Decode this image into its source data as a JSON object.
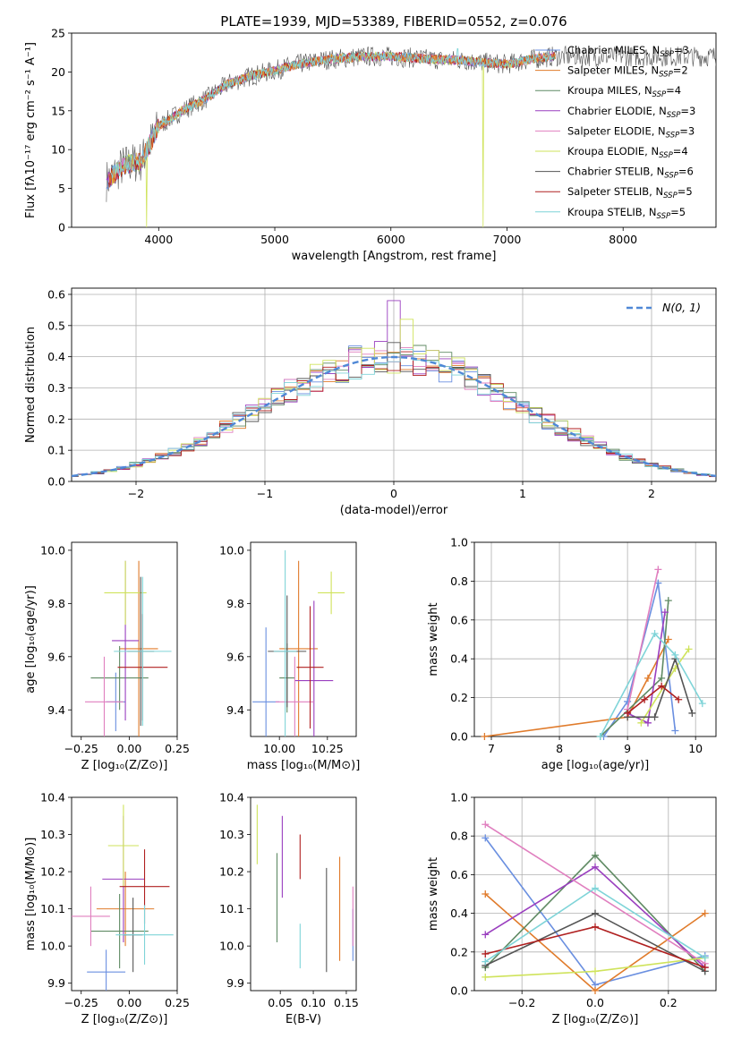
{
  "figure": {
    "title": "PLATE=1939, MJD=53389, FIBERID=0552, z=0.076"
  },
  "colors": {
    "series": [
      "#6a8fe0",
      "#e07b2b",
      "#5f8a63",
      "#9a3fbf",
      "#e07fbf",
      "#cfe35b",
      "#555555",
      "#b02020",
      "#7fd4d8"
    ]
  },
  "chart_data": [
    {
      "id": "spectrum",
      "type": "line",
      "title": "PLATE=1939, MJD=53389, FIBERID=0552, z=0.076",
      "xlabel": "wavelength [Angstrom, rest frame]",
      "ylabel": "Flux [fλ10⁻¹⁷ erg cm⁻² s⁻¹ A⁻¹]",
      "xlim": [
        3250,
        8800
      ],
      "ylim": [
        0,
        25
      ],
      "xticks": [
        4000,
        5000,
        6000,
        7000,
        8000
      ],
      "yticks": [
        0,
        5,
        10,
        15,
        20,
        25
      ],
      "grid": false,
      "legend": "top-right",
      "series": [
        {
          "name": "Chabrier MILES, N",
          "sub": "SSP",
          "suffix": "=3"
        },
        {
          "name": "Salpeter MILES, N",
          "sub": "SSP",
          "suffix": "=2"
        },
        {
          "name": "Kroupa MILES, N",
          "sub": "SSP",
          "suffix": "=4"
        },
        {
          "name": "Chabrier ELODIE, N",
          "sub": "SSP",
          "suffix": "=3"
        },
        {
          "name": "Salpeter ELODIE, N",
          "sub": "SSP",
          "suffix": "=3"
        },
        {
          "name": "Kroupa ELODIE, N",
          "sub": "SSP",
          "suffix": "=4"
        },
        {
          "name": "Chabrier STELIB, N",
          "sub": "SSP",
          "suffix": "=6"
        },
        {
          "name": "Salpeter STELIB, N",
          "sub": "SSP",
          "suffix": "=5"
        },
        {
          "name": "Kroupa STELIB, N",
          "sub": "SSP",
          "suffix": "=5"
        }
      ],
      "continuum": {
        "x": [
          3550,
          3700,
          3850,
          4000,
          4200,
          4400,
          4600,
          4800,
          5000,
          5200,
          5400,
          5600,
          5800,
          6000,
          6200,
          6400,
          6600,
          6800,
          7000,
          7200,
          7400
        ],
        "y": [
          6.0,
          8.0,
          8.5,
          13.0,
          15.0,
          16.5,
          18.5,
          19.5,
          20.2,
          21.0,
          21.5,
          21.8,
          22.0,
          22.0,
          21.8,
          21.6,
          21.5,
          21.2,
          21.0,
          21.6,
          22.0
        ]
      }
    },
    {
      "id": "residuals",
      "type": "histogram",
      "xlabel": "(data-model)/error",
      "ylabel": "Normed distribution",
      "xlim": [
        -2.5,
        2.5
      ],
      "ylim": [
        0,
        0.62
      ],
      "xticks": [
        -2,
        -1,
        0,
        1,
        2
      ],
      "xticklabels": [
        "−2",
        "−1",
        "0",
        "1",
        "2"
      ],
      "yticks": [
        0,
        0.1,
        0.2,
        0.3,
        0.4,
        0.5,
        0.6
      ],
      "yticklabels": [
        "0.0",
        "0.1",
        "0.2",
        "0.3",
        "0.4",
        "0.5",
        "0.6"
      ],
      "grid": true,
      "legend": "top-right",
      "reference": {
        "name": "N(0, 1)",
        "style": "dashed"
      }
    },
    {
      "id": "age-vs-Z",
      "type": "scatter",
      "xlabel": "Z [log₁₀(Z/Z⊙)]",
      "ylabel": "age  [log₁₀(age/yr)]",
      "xlim": [
        -0.3,
        0.25
      ],
      "ylim": [
        9.3,
        10.03
      ],
      "xticks": [
        -0.25,
        0.0,
        0.25
      ],
      "xticklabels": [
        "−0.25",
        "0.00",
        "0.25"
      ],
      "yticks": [
        9.4,
        9.6,
        9.8,
        10.0
      ],
      "yticklabels": [
        "9.4",
        "9.6",
        "9.8",
        "10.0"
      ],
      "points": [
        {
          "x": -0.07,
          "y": 9.43,
          "xerr": 0.05,
          "yerr": 0.11
        },
        {
          "x": 0.05,
          "y": 9.63,
          "xerr": 0.1,
          "yerr": 0.33
        },
        {
          "x": -0.05,
          "y": 9.52,
          "xerr": 0.15,
          "yerr": 0.12
        },
        {
          "x": -0.02,
          "y": 9.66,
          "xerr": 0.07,
          "yerr": 0.3
        },
        {
          "x": -0.13,
          "y": 9.43,
          "xerr": 0.1,
          "yerr": 0.17
        },
        {
          "x": -0.02,
          "y": 9.84,
          "xerr": 0.11,
          "yerr": 0.12
        },
        {
          "x": 0.06,
          "y": 9.62,
          "xerr": 0.07,
          "yerr": 0.28
        },
        {
          "x": 0.07,
          "y": 9.56,
          "xerr": 0.13,
          "yerr": 0.2
        },
        {
          "x": 0.07,
          "y": 9.62,
          "xerr": 0.15,
          "yerr": 0.28
        }
      ]
    },
    {
      "id": "age-vs-mass",
      "type": "scatter",
      "xlabel": "mass [log₁₀(M/M⊙)]",
      "ylabel": "",
      "xlim": [
        9.85,
        10.4
      ],
      "ylim": [
        9.3,
        10.03
      ],
      "xticks": [
        10.0,
        10.25
      ],
      "xticklabels": [
        "10.00",
        "10.25"
      ],
      "yticks": [
        9.4,
        9.6,
        9.8,
        10.0
      ],
      "yticklabels": [
        "9.4",
        "9.6",
        "9.8",
        "10.0"
      ],
      "points": [
        {
          "x": 9.93,
          "y": 9.43,
          "xerr": 0.07,
          "yerr": 0.28
        },
        {
          "x": 10.1,
          "y": 9.63,
          "xerr": 0.1,
          "yerr": 0.33
        },
        {
          "x": 10.04,
          "y": 9.52,
          "xerr": 0.04,
          "yerr": 0.13
        },
        {
          "x": 10.18,
          "y": 9.51,
          "xerr": 0.1,
          "yerr": 0.3
        },
        {
          "x": 10.08,
          "y": 9.43,
          "xerr": 0.1,
          "yerr": 0.17
        },
        {
          "x": 10.27,
          "y": 9.84,
          "xerr": 0.07,
          "yerr": 0.08
        },
        {
          "x": 10.04,
          "y": 9.62,
          "xerr": 0.1,
          "yerr": 0.21
        },
        {
          "x": 10.16,
          "y": 9.56,
          "xerr": 0.07,
          "yerr": 0.23
        },
        {
          "x": 10.03,
          "y": 9.62,
          "xerr": 0.06,
          "yerr": 0.38
        }
      ]
    },
    {
      "id": "weight-vs-age",
      "type": "line",
      "xlabel": "age  [log₁₀(age/yr)]",
      "ylabel": "mass weight",
      "xlim": [
        6.75,
        10.3
      ],
      "ylim": [
        0,
        1.0
      ],
      "xticks": [
        7,
        8,
        9,
        10
      ],
      "xticklabels": [
        "7",
        "8",
        "9",
        "10"
      ],
      "yticks": [
        0,
        0.2,
        0.4,
        0.6,
        0.8,
        1.0
      ],
      "yticklabels": [
        "0.0",
        "0.2",
        "0.4",
        "0.6",
        "0.8",
        "1.0"
      ],
      "grid": true,
      "series": [
        {
          "x": [
            8.65,
            9.0,
            9.45,
            9.7
          ],
          "y": [
            0.0,
            0.18,
            0.79,
            0.03
          ]
        },
        {
          "x": [
            6.9,
            9.0,
            9.3,
            9.6
          ],
          "y": [
            0.0,
            0.1,
            0.3,
            0.5
          ]
        },
        {
          "x": [
            8.6,
            9.5,
            9.6
          ],
          "y": [
            0.0,
            0.3,
            0.7
          ]
        },
        {
          "x": [
            9.0,
            9.3,
            9.55
          ],
          "y": [
            0.12,
            0.07,
            0.64
          ]
        },
        {
          "x": [
            9.0,
            9.45
          ],
          "y": [
            0.14,
            0.86
          ]
        },
        {
          "x": [
            9.2,
            9.7,
            9.9
          ],
          "y": [
            0.07,
            0.35,
            0.45
          ]
        },
        {
          "x": [
            9.0,
            9.4,
            9.7,
            9.95
          ],
          "y": [
            0.1,
            0.1,
            0.4,
            0.12
          ]
        },
        {
          "x": [
            9.0,
            9.25,
            9.5,
            9.75
          ],
          "y": [
            0.12,
            0.19,
            0.26,
            0.19
          ]
        },
        {
          "x": [
            8.6,
            9.4,
            9.7,
            10.1
          ],
          "y": [
            0.0,
            0.53,
            0.42,
            0.17
          ]
        }
      ]
    },
    {
      "id": "mass-vs-Z",
      "type": "scatter",
      "xlabel": "Z [log₁₀(Z/Z⊙)]",
      "ylabel": "mass [log₁₀(M/M⊙)]",
      "xlim": [
        -0.3,
        0.25
      ],
      "ylim": [
        9.88,
        10.4
      ],
      "xticks": [
        -0.25,
        0.0,
        0.25
      ],
      "xticklabels": [
        "−0.25",
        "0.00",
        "0.25"
      ],
      "yticks": [
        9.9,
        10.0,
        10.1,
        10.2,
        10.3,
        10.4
      ],
      "yticklabels": [
        "9.9",
        "10.0",
        "10.1",
        "10.2",
        "10.3",
        "10.4"
      ],
      "points": [
        {
          "x": -0.12,
          "y": 9.93,
          "xerr": 0.1,
          "yerr": 0.06
        },
        {
          "x": -0.02,
          "y": 10.1,
          "xerr": 0.15,
          "yerr": 0.1
        },
        {
          "x": -0.05,
          "y": 10.04,
          "xerr": 0.15,
          "yerr": 0.1
        },
        {
          "x": -0.03,
          "y": 10.18,
          "xerr": 0.11,
          "yerr": 0.17
        },
        {
          "x": -0.2,
          "y": 10.08,
          "xerr": 0.1,
          "yerr": 0.08
        },
        {
          "x": -0.03,
          "y": 10.27,
          "xerr": 0.08,
          "yerr": 0.11
        },
        {
          "x": 0.02,
          "y": 10.03,
          "xerr": 0.05,
          "yerr": 0.1
        },
        {
          "x": 0.08,
          "y": 10.16,
          "xerr": 0.13,
          "yerr": 0.1
        },
        {
          "x": 0.08,
          "y": 10.03,
          "xerr": 0.15,
          "yerr": 0.08
        }
      ]
    },
    {
      "id": "mass-vs-EBV",
      "type": "scatter",
      "xlabel": "E(B-V)",
      "ylabel": "",
      "xlim": [
        0.005,
        0.165
      ],
      "ylim": [
        9.88,
        10.4
      ],
      "xticks": [
        0.05,
        0.1,
        0.15
      ],
      "xticklabels": [
        "0.05",
        "0.10",
        "0.15"
      ],
      "yticks": [
        9.9,
        10.0,
        10.1,
        10.2,
        10.3,
        10.4
      ],
      "yticklabels": [
        "9.9",
        "10.0",
        "10.1",
        "10.2",
        "10.3",
        "10.4"
      ],
      "points": [
        {
          "x": 0.16,
          "y": 10.03,
          "xerr": 0,
          "yerr": 0.07
        },
        {
          "x": 0.14,
          "y": 10.1,
          "xerr": 0,
          "yerr": 0.14
        },
        {
          "x": 0.045,
          "y": 10.13,
          "xerr": 0,
          "yerr": 0.12
        },
        {
          "x": 0.053,
          "y": 10.24,
          "xerr": 0,
          "yerr": 0.11
        },
        {
          "x": 0.16,
          "y": 10.08,
          "xerr": 0,
          "yerr": 0.08
        },
        {
          "x": 0.015,
          "y": 10.3,
          "xerr": 0,
          "yerr": 0.08
        },
        {
          "x": 0.12,
          "y": 10.07,
          "xerr": 0,
          "yerr": 0.14
        },
        {
          "x": 0.08,
          "y": 10.24,
          "xerr": 0,
          "yerr": 0.06
        },
        {
          "x": 0.08,
          "y": 10.0,
          "xerr": 0,
          "yerr": 0.06
        }
      ]
    },
    {
      "id": "weight-vs-Z",
      "type": "line",
      "xlabel": "Z [log₁₀(Z/Z⊙)]",
      "ylabel": "mass weight",
      "xlim": [
        -0.33,
        0.33
      ],
      "ylim": [
        0,
        1.0
      ],
      "xticks": [
        -0.2,
        0.0,
        0.2
      ],
      "xticklabels": [
        "−0.2",
        "0.0",
        "0.2"
      ],
      "yticks": [
        0,
        0.2,
        0.4,
        0.6,
        0.8,
        1.0
      ],
      "yticklabels": [
        "0.0",
        "0.2",
        "0.4",
        "0.6",
        "0.8",
        "1.0"
      ],
      "grid": true,
      "series": [
        {
          "x": [
            -0.3,
            0.0,
            0.3
          ],
          "y": [
            0.79,
            0.03,
            0.18
          ]
        },
        {
          "x": [
            -0.3,
            0.0,
            0.3
          ],
          "y": [
            0.5,
            0.0,
            0.4
          ]
        },
        {
          "x": [
            -0.3,
            0.0,
            0.3
          ],
          "y": [
            0.12,
            0.7,
            0.1
          ]
        },
        {
          "x": [
            -0.3,
            0.0,
            0.3
          ],
          "y": [
            0.29,
            0.64,
            0.12
          ]
        },
        {
          "x": [
            -0.3,
            0.3
          ],
          "y": [
            0.86,
            0.14
          ]
        },
        {
          "x": [
            -0.3,
            0.0,
            0.3
          ],
          "y": [
            0.07,
            0.1,
            0.17
          ]
        },
        {
          "x": [
            -0.3,
            0.0,
            0.3
          ],
          "y": [
            0.13,
            0.4,
            0.1
          ]
        },
        {
          "x": [
            -0.3,
            0.0,
            0.3
          ],
          "y": [
            0.19,
            0.33,
            0.12
          ]
        },
        {
          "x": [
            -0.3,
            0.0,
            0.3
          ],
          "y": [
            0.15,
            0.53,
            0.17
          ]
        }
      ]
    }
  ]
}
